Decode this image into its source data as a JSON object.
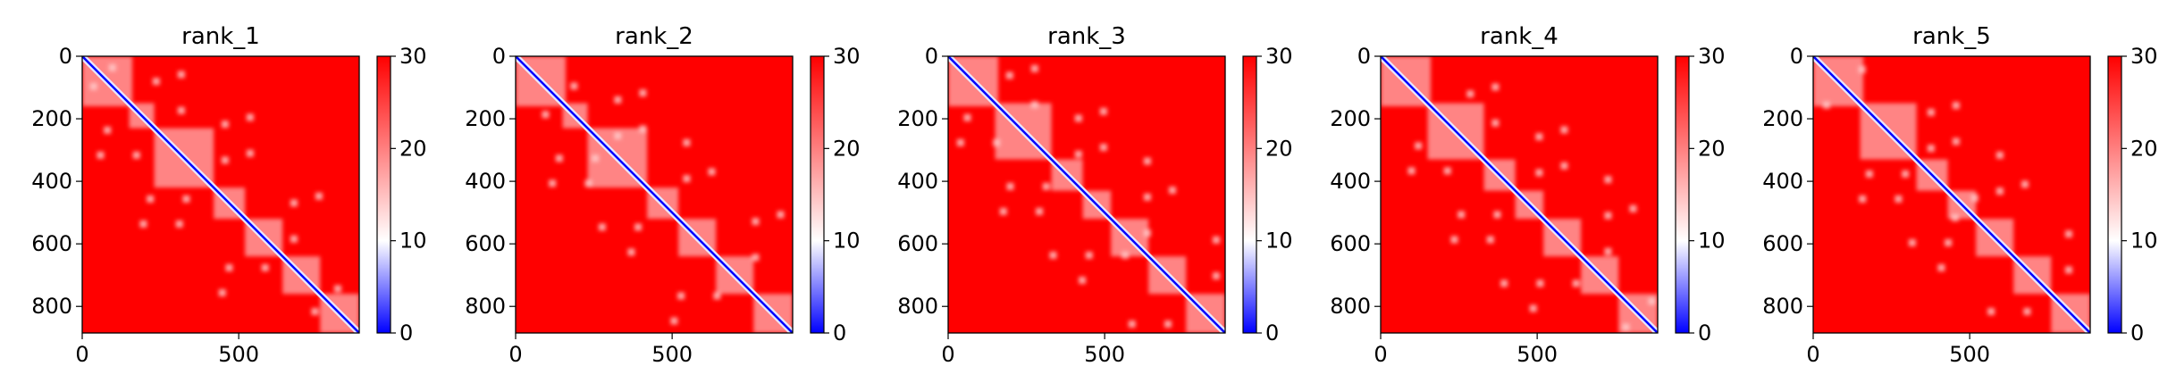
{
  "colormap": {
    "low": "#0000ff",
    "mid": "#ffffff",
    "high": "#ff0000"
  },
  "chart_data": [
    {
      "type": "heatmap",
      "title": "rank_1",
      "xlim": [
        0,
        885
      ],
      "ylim": [
        885,
        0
      ],
      "xticks": [
        0,
        500
      ],
      "yticks": [
        0,
        200,
        400,
        600,
        800
      ],
      "colorbar": {
        "min": 0,
        "max": 30,
        "ticks": [
          0,
          10,
          20,
          30
        ]
      },
      "low_value_blocks": [
        [
          0,
          160
        ],
        [
          150,
          230
        ],
        [
          230,
          420
        ],
        [
          420,
          520
        ],
        [
          520,
          640
        ],
        [
          640,
          760
        ],
        [
          760,
          885
        ]
      ]
    },
    {
      "type": "heatmap",
      "title": "rank_2",
      "xlim": [
        0,
        885
      ],
      "ylim": [
        885,
        0
      ],
      "xticks": [
        0,
        500
      ],
      "yticks": [
        0,
        200,
        400,
        600,
        800
      ],
      "colorbar": {
        "min": 0,
        "max": 30,
        "ticks": [
          0,
          10,
          20,
          30
        ]
      },
      "low_value_blocks": [
        [
          0,
          160
        ],
        [
          150,
          230
        ],
        [
          230,
          420
        ],
        [
          420,
          520
        ],
        [
          520,
          640
        ],
        [
          640,
          760
        ],
        [
          760,
          885
        ]
      ]
    },
    {
      "type": "heatmap",
      "title": "rank_3",
      "xlim": [
        0,
        885
      ],
      "ylim": [
        885,
        0
      ],
      "xticks": [
        0,
        500
      ],
      "yticks": [
        0,
        200,
        400,
        600,
        800
      ],
      "colorbar": {
        "min": 0,
        "max": 30,
        "ticks": [
          0,
          10,
          20,
          30
        ]
      },
      "low_value_blocks": [
        [
          0,
          160
        ],
        [
          150,
          330
        ],
        [
          330,
          430
        ],
        [
          430,
          520
        ],
        [
          520,
          640
        ],
        [
          640,
          760
        ],
        [
          760,
          885
        ]
      ]
    },
    {
      "type": "heatmap",
      "title": "rank_4",
      "xlim": [
        0,
        885
      ],
      "ylim": [
        885,
        0
      ],
      "xticks": [
        0,
        500
      ],
      "yticks": [
        0,
        200,
        400,
        600,
        800
      ],
      "colorbar": {
        "min": 0,
        "max": 30,
        "ticks": [
          0,
          10,
          20,
          30
        ]
      },
      "low_value_blocks": [
        [
          0,
          160
        ],
        [
          150,
          330
        ],
        [
          330,
          430
        ],
        [
          430,
          520
        ],
        [
          520,
          640
        ],
        [
          640,
          760
        ],
        [
          760,
          885
        ]
      ]
    },
    {
      "type": "heatmap",
      "title": "rank_5",
      "xlim": [
        0,
        885
      ],
      "ylim": [
        885,
        0
      ],
      "xticks": [
        0,
        500
      ],
      "yticks": [
        0,
        200,
        400,
        600,
        800
      ],
      "colorbar": {
        "min": 0,
        "max": 30,
        "ticks": [
          0,
          10,
          20,
          30
        ]
      },
      "low_value_blocks": [
        [
          0,
          160
        ],
        [
          150,
          330
        ],
        [
          330,
          430
        ],
        [
          430,
          520
        ],
        [
          520,
          640
        ],
        [
          640,
          760
        ],
        [
          760,
          885
        ]
      ]
    }
  ]
}
